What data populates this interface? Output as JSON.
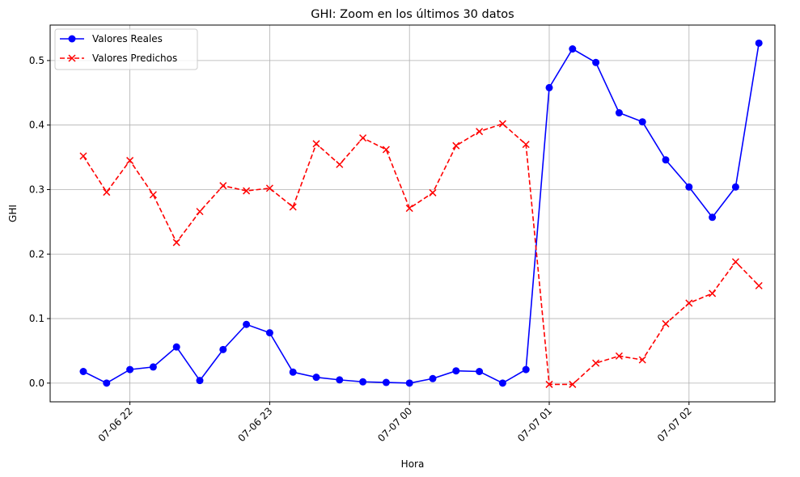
{
  "chart_data": {
    "type": "line",
    "title": "GHI: Zoom en los últimos 30 datos",
    "xlabel": "Hora",
    "ylabel": "GHI",
    "x": [
      "2024-07-06 21:40",
      "2024-07-06 21:50",
      "2024-07-06 22:00",
      "2024-07-06 22:10",
      "2024-07-06 22:20",
      "2024-07-06 22:30",
      "2024-07-06 22:40",
      "2024-07-06 22:50",
      "2024-07-06 23:00",
      "2024-07-06 23:10",
      "2024-07-06 23:20",
      "2024-07-06 23:30",
      "2024-07-06 23:40",
      "2024-07-06 23:50",
      "2024-07-07 00:00",
      "2024-07-07 00:10",
      "2024-07-07 00:20",
      "2024-07-07 00:30",
      "2024-07-07 00:40",
      "2024-07-07 00:50",
      "2024-07-07 01:00",
      "2024-07-07 01:10",
      "2024-07-07 01:20",
      "2024-07-07 01:30",
      "2024-07-07 01:40",
      "2024-07-07 01:50",
      "2024-07-07 02:00",
      "2024-07-07 02:10",
      "2024-07-07 02:20",
      "2024-07-07 02:30"
    ],
    "series": [
      {
        "name": "Valores Reales",
        "color": "#0000ff",
        "linestyle": "solid",
        "marker": "circle",
        "values": [
          0.018,
          0.0,
          0.021,
          0.025,
          0.056,
          0.004,
          0.052,
          0.091,
          0.078,
          0.017,
          0.009,
          0.005,
          0.002,
          0.001,
          0.0,
          0.007,
          0.019,
          0.018,
          0.0,
          0.021,
          0.458,
          0.518,
          0.497,
          0.419,
          0.405,
          0.346,
          0.304,
          0.257,
          0.304,
          0.527
        ]
      },
      {
        "name": "Valores Predichos",
        "color": "#ff0000",
        "linestyle": "dashed",
        "marker": "x",
        "values": [
          0.352,
          0.296,
          0.345,
          0.292,
          0.218,
          0.266,
          0.306,
          0.298,
          0.302,
          0.273,
          0.371,
          0.339,
          0.38,
          0.362,
          0.271,
          0.295,
          0.368,
          0.39,
          0.402,
          0.37,
          -0.002,
          -0.002,
          0.031,
          0.042,
          0.036,
          0.092,
          0.124,
          0.139,
          0.188,
          0.151
        ]
      }
    ],
    "xticks": [
      "07-06 22",
      "07-06 23",
      "07-07 00",
      "07-07 01",
      "07-07 02"
    ],
    "yticks": [
      "0.0",
      "0.1",
      "0.2",
      "0.3",
      "0.4",
      "0.5"
    ],
    "ylim": [
      -0.029,
      0.555
    ],
    "grid": true,
    "legend_position": "upper-left"
  }
}
